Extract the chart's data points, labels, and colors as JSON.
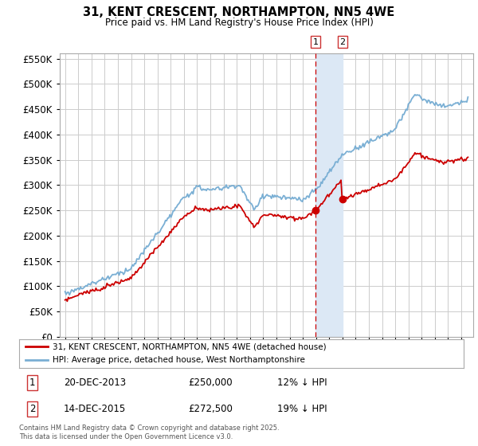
{
  "title": "31, KENT CRESCENT, NORTHAMPTON, NN5 4WE",
  "subtitle": "Price paid vs. HM Land Registry's House Price Index (HPI)",
  "legend_line1": "31, KENT CRESCENT, NORTHAMPTON, NN5 4WE (detached house)",
  "legend_line2": "HPI: Average price, detached house, West Northamptonshire",
  "transaction1_date": "20-DEC-2013",
  "transaction1_price": "£250,000",
  "transaction1_hpi": "12% ↓ HPI",
  "transaction2_date": "14-DEC-2015",
  "transaction2_price": "£272,500",
  "transaction2_hpi": "19% ↓ HPI",
  "footer": "Contains HM Land Registry data © Crown copyright and database right 2025.\nThis data is licensed under the Open Government Licence v3.0.",
  "red_color": "#cc0000",
  "blue_color": "#7aafd4",
  "vline_color": "#cc0000",
  "vshade_color": "#dce8f5",
  "background_color": "#ffffff",
  "grid_color": "#cccccc",
  "ylim": [
    0,
    560000
  ],
  "yticks": [
    0,
    50000,
    100000,
    150000,
    200000,
    250000,
    300000,
    350000,
    400000,
    450000,
    500000,
    550000
  ],
  "vline1_x": 2013.96,
  "vline2_x": 2016.0,
  "marker1_red_x": 2013.96,
  "marker1_red_y": 250000,
  "marker2_red_x": 2016.0,
  "marker2_red_y": 272500,
  "xmin": 1994.6,
  "xmax": 2025.9
}
